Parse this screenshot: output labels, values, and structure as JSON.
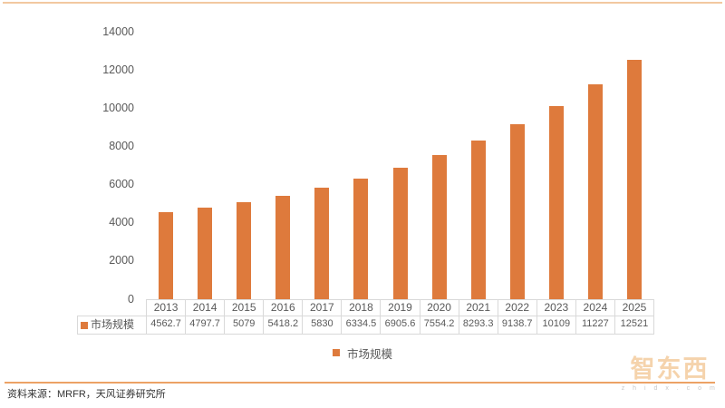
{
  "chart_data": {
    "type": "bar",
    "title": "",
    "categories": [
      "2013",
      "2014",
      "2015",
      "2016",
      "2017",
      "2018",
      "2019",
      "2020",
      "2021",
      "2022",
      "2023",
      "2024",
      "2025"
    ],
    "series": [
      {
        "name": "市场规模",
        "values": [
          4562.7,
          4797.7,
          5079,
          5418.2,
          5830,
          6334.5,
          6905.6,
          7554.2,
          8293.3,
          9138.7,
          10109,
          11227,
          12521
        ]
      }
    ],
    "xlabel": "",
    "ylabel": "",
    "ylim": [
      0,
      14000
    ],
    "ytick_step": 2000,
    "grid": false,
    "legend_position": "bottom",
    "data_table_shown": true,
    "bar_color": "#DE7A3C"
  },
  "legend": {
    "label": "市场规模",
    "swatch_color": "#DE7A3C"
  },
  "table": {
    "row_header": "市场规模",
    "key_color": "#DE7A3C"
  },
  "footer": {
    "source_note": "资料来源：MRFR，天风证券研究所"
  },
  "watermark": {
    "brand": "智东西",
    "domain": "z h i d x . c o m"
  },
  "colors": {
    "bar": "#DE7A3C",
    "top_rule": "#F2C8A0",
    "bottom_rule": "#ECA265",
    "axis_text": "#595959",
    "table_border": "#D9D9D9"
  }
}
